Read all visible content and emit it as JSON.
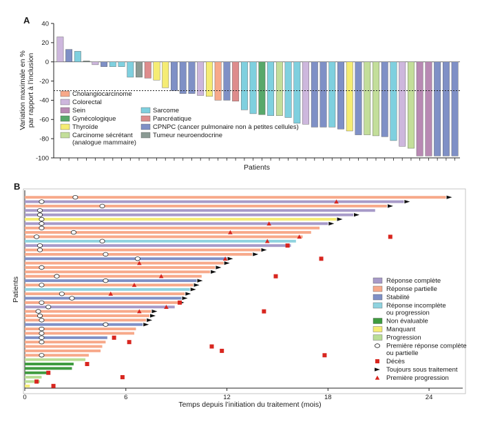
{
  "chart_data": [
    {
      "panel": "A",
      "type": "bar",
      "ylabel_lines": [
        "Variation maximale en %",
        "par rapport à l’inclusion"
      ],
      "xlabel": "Patients",
      "ylim": [
        -100,
        40
      ],
      "yticks": [
        40,
        20,
        0,
        -20,
        -40,
        -60,
        -80,
        -100
      ],
      "reference_line": -30,
      "categories": [
        {
          "key": "chol",
          "label": "Cholangiocarcinome",
          "color": "#f7a98a"
        },
        {
          "key": "colo",
          "label": "Colorectal",
          "color": "#cdb7dd"
        },
        {
          "key": "sein",
          "label": "Sein",
          "color": "#b889b3"
        },
        {
          "key": "gyne",
          "label": "Gynécologique",
          "color": "#58a86a"
        },
        {
          "key": "thyr",
          "label": "Thyroïde",
          "color": "#f5ec74"
        },
        {
          "key": "carc",
          "label_lines": [
            "Carcinome sécrétant",
            "(analogue mammaire)"
          ],
          "color": "#c3de9a"
        },
        {
          "key": "sarc",
          "label": "Sarcome",
          "color": "#7fd0df"
        },
        {
          "key": "panc",
          "label": "Pancréatique",
          "color": "#de8c8c"
        },
        {
          "key": "cpnpc",
          "label": "CPNPC (cancer pulmonaire non à petites cellules)",
          "color": "#7f90c6"
        },
        {
          "key": "neuro",
          "label": "Tumeur neuroendocrine",
          "color": "#8a9a93"
        }
      ],
      "bars": [
        {
          "cat": "colo",
          "value": 26
        },
        {
          "cat": "cpnpc",
          "value": 13
        },
        {
          "cat": "sarc",
          "value": 11
        },
        {
          "cat": "neuro",
          "value": 1
        },
        {
          "cat": "colo",
          "value": -3
        },
        {
          "cat": "cpnpc",
          "value": -5
        },
        {
          "cat": "sarc",
          "value": -5
        },
        {
          "cat": "sarc",
          "value": -5
        },
        {
          "cat": "sarc",
          "value": -16
        },
        {
          "cat": "neuro",
          "value": -16
        },
        {
          "cat": "panc",
          "value": -17
        },
        {
          "cat": "thyr",
          "value": -19
        },
        {
          "cat": "thyr",
          "value": -27
        },
        {
          "cat": "cpnpc",
          "value": -30
        },
        {
          "cat": "cpnpc",
          "value": -33
        },
        {
          "cat": "cpnpc",
          "value": -33
        },
        {
          "cat": "colo",
          "value": -35
        },
        {
          "cat": "thyr",
          "value": -36
        },
        {
          "cat": "chol",
          "value": -40
        },
        {
          "cat": "cpnpc",
          "value": -40
        },
        {
          "cat": "panc",
          "value": -41
        },
        {
          "cat": "sarc",
          "value": -50
        },
        {
          "cat": "sarc",
          "value": -54
        },
        {
          "cat": "gyne",
          "value": -55
        },
        {
          "cat": "sarc",
          "value": -56
        },
        {
          "cat": "carc",
          "value": -56
        },
        {
          "cat": "sarc",
          "value": -58
        },
        {
          "cat": "sarc",
          "value": -64
        },
        {
          "cat": "colo",
          "value": -65
        },
        {
          "cat": "cpnpc",
          "value": -68
        },
        {
          "cat": "cpnpc",
          "value": -68
        },
        {
          "cat": "sarc",
          "value": -68
        },
        {
          "cat": "cpnpc",
          "value": -70
        },
        {
          "cat": "thyr",
          "value": -72
        },
        {
          "cat": "cpnpc",
          "value": -76
        },
        {
          "cat": "carc",
          "value": -76
        },
        {
          "cat": "carc",
          "value": -77
        },
        {
          "cat": "cpnpc",
          "value": -78
        },
        {
          "cat": "sarc",
          "value": -82
        },
        {
          "cat": "colo",
          "value": -88
        },
        {
          "cat": "carc",
          "value": -90
        },
        {
          "cat": "sein",
          "value": -98
        },
        {
          "cat": "sein",
          "value": -98
        },
        {
          "cat": "cpnpc",
          "value": -98
        },
        {
          "cat": "cpnpc",
          "value": -98
        },
        {
          "cat": "cpnpc",
          "value": -98
        }
      ]
    },
    {
      "panel": "B",
      "type": "swimmer",
      "ylabel": "Patients",
      "xlabel": "Temps depuis l’initiation du traitement (mois)",
      "xlim": [
        0,
        26
      ],
      "xticks": [
        0,
        6,
        12,
        18,
        24
      ],
      "status_legend": [
        {
          "key": "rc",
          "label_lines": [
            "Réponse complète"
          ],
          "color": "#a79ac8"
        },
        {
          "key": "rp",
          "label_lines": [
            "Réponse partielle"
          ],
          "color": "#f7a98a"
        },
        {
          "key": "st",
          "label_lines": [
            "Stabilité"
          ],
          "color": "#7f90c6"
        },
        {
          "key": "rip",
          "label_lines": [
            "Réponse incomplète",
            "ou progression"
          ],
          "color": "#8fd3df"
        },
        {
          "key": "ne",
          "label_lines": [
            "Non évaluable"
          ],
          "color": "#3f9b3f"
        },
        {
          "key": "ma",
          "label_lines": [
            "Manquant"
          ],
          "color": "#f5ec74"
        },
        {
          "key": "pr",
          "label_lines": [
            "Progression"
          ],
          "color": "#b9dd95"
        }
      ],
      "marker_legend": [
        {
          "key": "first_response",
          "label_lines": [
            "Première réponse complète",
            "ou partielle"
          ]
        },
        {
          "key": "death",
          "label_lines": [
            "Décès"
          ],
          "color": "#d8261f"
        },
        {
          "key": "ongoing",
          "label_lines": [
            "Toujours sous traitement"
          ],
          "color": "#111111"
        },
        {
          "key": "first_progression",
          "label_lines": [
            "Première progression"
          ],
          "color": "#d8261f"
        }
      ],
      "patients": [
        {
          "status": "rp",
          "end": 25,
          "ongoing": true,
          "response": 3
        },
        {
          "status": "rc",
          "end": 22.5,
          "ongoing": true,
          "response": 1,
          "progression": 18.5
        },
        {
          "status": "rp",
          "end": 21.5,
          "ongoing": true,
          "response": 4.6
        },
        {
          "status": "rc",
          "end": 20.8,
          "ongoing": false,
          "response": 0.9
        },
        {
          "status": "rc",
          "end": 19.5,
          "ongoing": true,
          "response": 0.9
        },
        {
          "status": "ma",
          "end": 18.5,
          "ongoing": true,
          "response": 1
        },
        {
          "status": "rc",
          "end": 18,
          "ongoing": true,
          "response": 1,
          "progression": 14.5
        },
        {
          "status": "rp",
          "end": 17.5,
          "ongoing": false,
          "response": 1
        },
        {
          "status": "rp",
          "end": 17,
          "ongoing": false,
          "response": 2.9,
          "progression": 12.2
        },
        {
          "status": "rp",
          "end": 16.5,
          "ongoing": false,
          "response": 0.7,
          "death": 21.7,
          "progression": 16.3
        },
        {
          "status": "rip",
          "end": 16.1,
          "ongoing": false,
          "response": 4.6,
          "progression": 14.4
        },
        {
          "status": "rc",
          "end": 15.8,
          "ongoing": false,
          "response": 0.9,
          "death": 15.6
        },
        {
          "status": "rp",
          "end": 14,
          "ongoing": true,
          "response": 0.9
        },
        {
          "status": "rp",
          "end": 13.5,
          "ongoing": true,
          "response": 4.8
        },
        {
          "status": "cpnpc_row",
          "status_key": "st",
          "end": 12,
          "ongoing": true,
          "response": 6.7,
          "death": 17.6,
          "progression": 11.9
        },
        {
          "status": "rp",
          "end": 11.8,
          "ongoing": true,
          "progression": 6.8
        },
        {
          "status": "rp",
          "end": 11.3,
          "ongoing": true,
          "response": 1
        },
        {
          "status": "rp",
          "end": 11,
          "ongoing": true
        },
        {
          "status": "rp",
          "end": 10.5,
          "ongoing": false,
          "response": 1.9,
          "progression": 8.1,
          "death": 14.9
        },
        {
          "status": "st",
          "end": 10.2,
          "ongoing": true,
          "response": 4.8
        },
        {
          "status": "rp",
          "end": 10,
          "ongoing": true,
          "response": 1,
          "progression": 6.5
        },
        {
          "status": "rip",
          "end": 9.8,
          "ongoing": true
        },
        {
          "status": "rp",
          "end": 9.5,
          "ongoing": true,
          "response": 2.2,
          "progression": 5.1
        },
        {
          "status": "st",
          "end": 9.3,
          "ongoing": true,
          "response": 2.8
        },
        {
          "status": "rp",
          "end": 9.1,
          "ongoing": true,
          "response": 1,
          "death": 9.2
        },
        {
          "status": "rc",
          "end": 8.9,
          "ongoing": false,
          "response": 1.4,
          "progression": 8.4
        },
        {
          "status": "rp",
          "end": 7.5,
          "ongoing": true,
          "response": 0.8,
          "progression": 6.8,
          "death": 14.2
        },
        {
          "status": "rp",
          "end": 7.4,
          "ongoing": true,
          "response": 0.9
        },
        {
          "status": "rp",
          "end": 7.2,
          "ongoing": true,
          "response": 1
        },
        {
          "status": "st",
          "end": 7,
          "ongoing": true,
          "response": 4.8
        },
        {
          "status": "rp",
          "end": 6.6,
          "ongoing": false,
          "response": 1
        },
        {
          "status": "rp",
          "end": 6.5,
          "ongoing": false,
          "response": 1
        },
        {
          "status": "st",
          "end": 4.9,
          "ongoing": false,
          "response": 1,
          "death": 5.3
        },
        {
          "status": "rp",
          "end": 4.8,
          "ongoing": false,
          "response": 1,
          "death": 6.2
        },
        {
          "status": "rp",
          "end": 4.6,
          "ongoing": false,
          "death": 11.1
        },
        {
          "status": "rp",
          "end": 4.5,
          "ongoing": false,
          "death": 11.7
        },
        {
          "status": "rp",
          "end": 3.8,
          "ongoing": false,
          "response": 1,
          "death": 17.8
        },
        {
          "status": "pr",
          "end": 3.6,
          "ongoing": false
        },
        {
          "status": "ne",
          "end": 2.9,
          "ongoing": false,
          "death": 3.7
        },
        {
          "status": "ne",
          "end": 2.8,
          "ongoing": false
        },
        {
          "status": "ne",
          "end": 1.4,
          "ongoing": false,
          "death": 1.4
        },
        {
          "status": "pr",
          "end": 1,
          "ongoing": false,
          "death": 5.8
        },
        {
          "status": "pr",
          "end": 0.9,
          "ongoing": false,
          "death": 0.7
        },
        {
          "status": "ma",
          "end": 0.3,
          "ongoing": false,
          "death": 1.7
        }
      ]
    }
  ],
  "labels": {
    "panel_a": "A",
    "panel_b": "B"
  }
}
